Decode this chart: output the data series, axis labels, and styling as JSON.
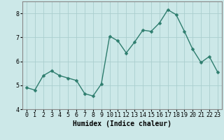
{
  "x": [
    0,
    1,
    2,
    3,
    4,
    5,
    6,
    7,
    8,
    9,
    10,
    11,
    12,
    13,
    14,
    15,
    16,
    17,
    18,
    19,
    20,
    21,
    22,
    23
  ],
  "y": [
    4.9,
    4.8,
    5.4,
    5.6,
    5.4,
    5.3,
    5.2,
    4.65,
    4.55,
    5.05,
    7.05,
    6.85,
    6.35,
    6.8,
    7.3,
    7.25,
    7.6,
    8.15,
    7.95,
    7.25,
    6.5,
    5.95,
    6.2,
    5.55
  ],
  "line_color": "#2e7d6e",
  "marker": "D",
  "marker_size": 2.5,
  "bg_color": "#cce8e8",
  "grid_color_major": "#aacece",
  "grid_color_minor": "#bcdada",
  "xlabel": "Humidex (Indice chaleur)",
  "ylim": [
    4.0,
    8.5
  ],
  "xlim": [
    -0.5,
    23.5
  ],
  "yticks": [
    4,
    5,
    6,
    7,
    8
  ],
  "xticks": [
    0,
    1,
    2,
    3,
    4,
    5,
    6,
    7,
    8,
    9,
    10,
    11,
    12,
    13,
    14,
    15,
    16,
    17,
    18,
    19,
    20,
    21,
    22,
    23
  ],
  "label_fontsize": 7,
  "tick_fontsize": 6,
  "spine_color": "#888888",
  "linewidth": 1.0
}
